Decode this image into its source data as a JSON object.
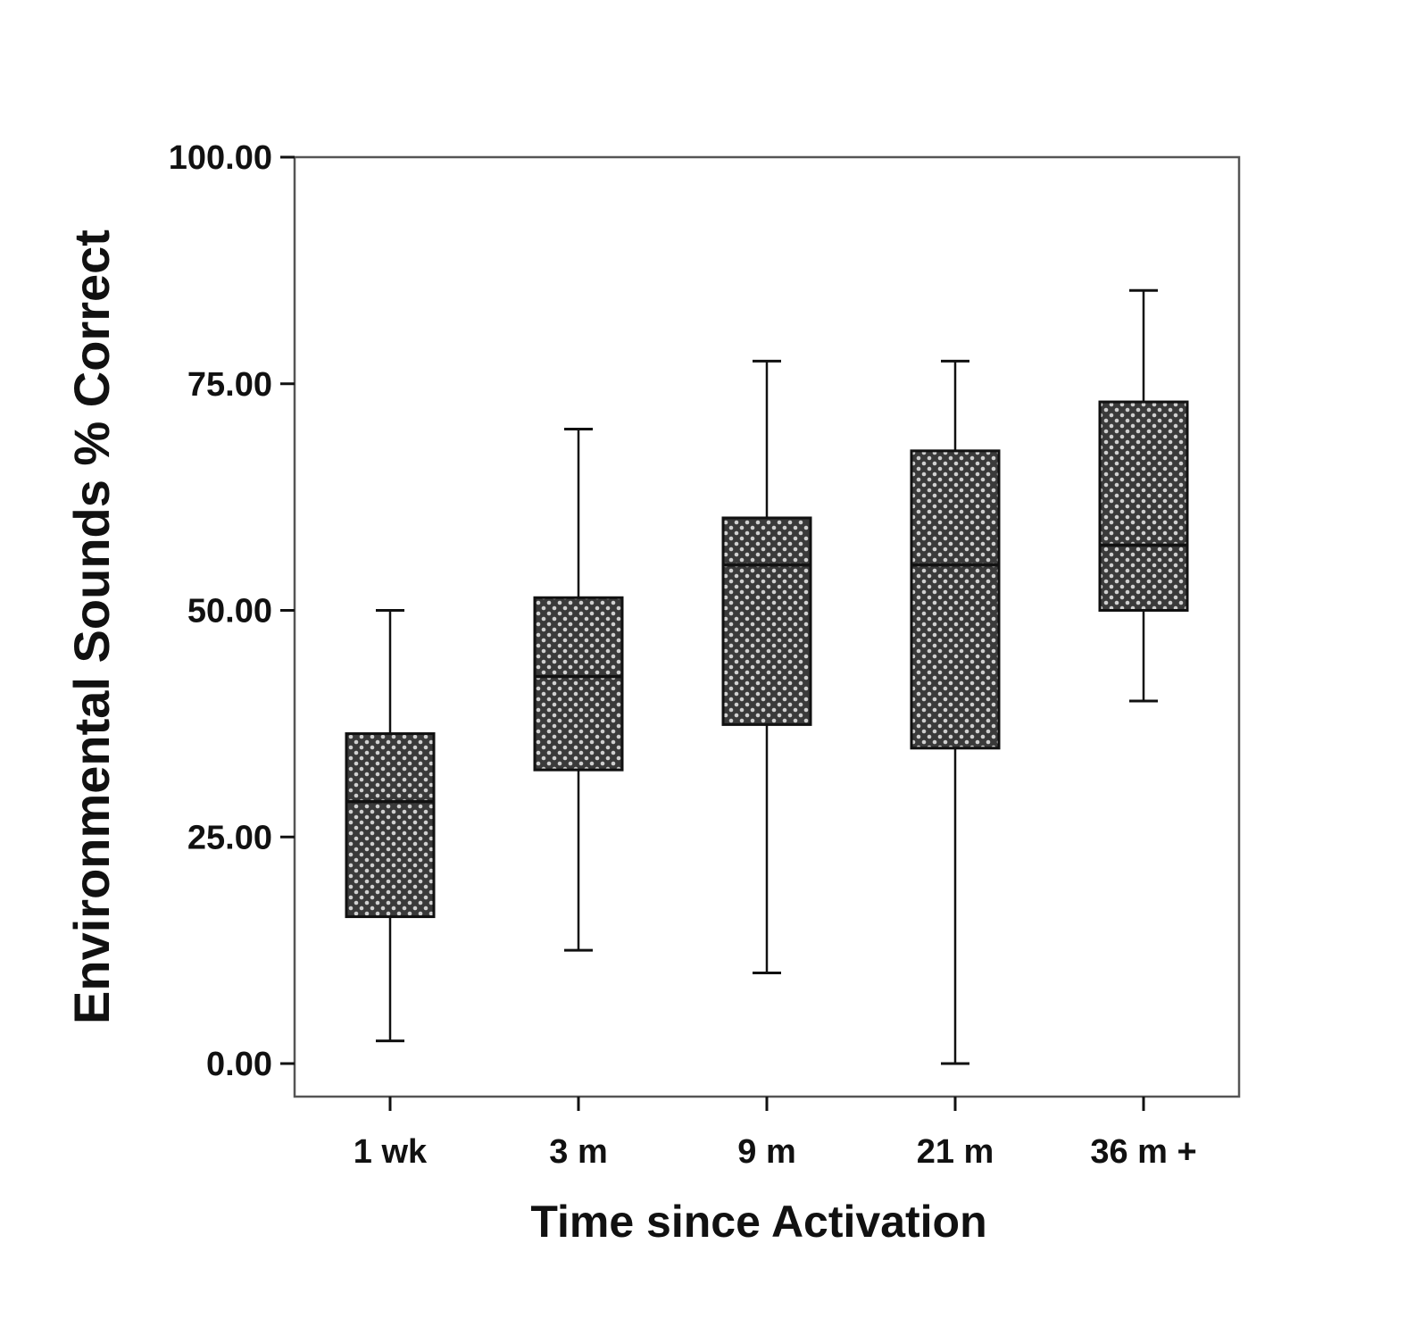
{
  "chart_data": {
    "type": "boxplot",
    "title": "",
    "xlabel": "Time since Activation",
    "ylabel": "Environmental Sounds % Correct",
    "ylim": [
      -3.5,
      100
    ],
    "yticks": [
      0,
      25,
      50,
      75,
      100
    ],
    "ytick_labels": [
      "0.00",
      "25.00",
      "50.00",
      "75.00",
      "100.00"
    ],
    "grid": false,
    "categories": [
      "1 wk",
      "3 m",
      "9 m",
      "21 m",
      "36 m +"
    ],
    "boxes": [
      {
        "category": "1 wk",
        "whisker_low": 2.5,
        "q1": 16.2,
        "median": 28.9,
        "q3": 36.4,
        "whisker_high": 50.0
      },
      {
        "category": "3 m",
        "whisker_low": 12.5,
        "q1": 32.4,
        "median": 42.7,
        "q3": 51.4,
        "whisker_high": 70.0
      },
      {
        "category": "9 m",
        "whisker_low": 10.0,
        "q1": 37.4,
        "median": 55.0,
        "q3": 60.2,
        "whisker_high": 77.5
      },
      {
        "category": "21 m",
        "whisker_low": 0.0,
        "q1": 34.8,
        "median": 55.0,
        "q3": 67.6,
        "whisker_high": 77.5
      },
      {
        "category": "36 m +",
        "whisker_low": 40.0,
        "q1": 50.0,
        "median": 57.2,
        "q3": 73.0,
        "whisker_high": 85.3
      }
    ],
    "colors": {
      "box_fill": "#4a4a4a",
      "pattern_light": "#c8c8c8",
      "line": "#111111",
      "frame": "#555555"
    }
  }
}
